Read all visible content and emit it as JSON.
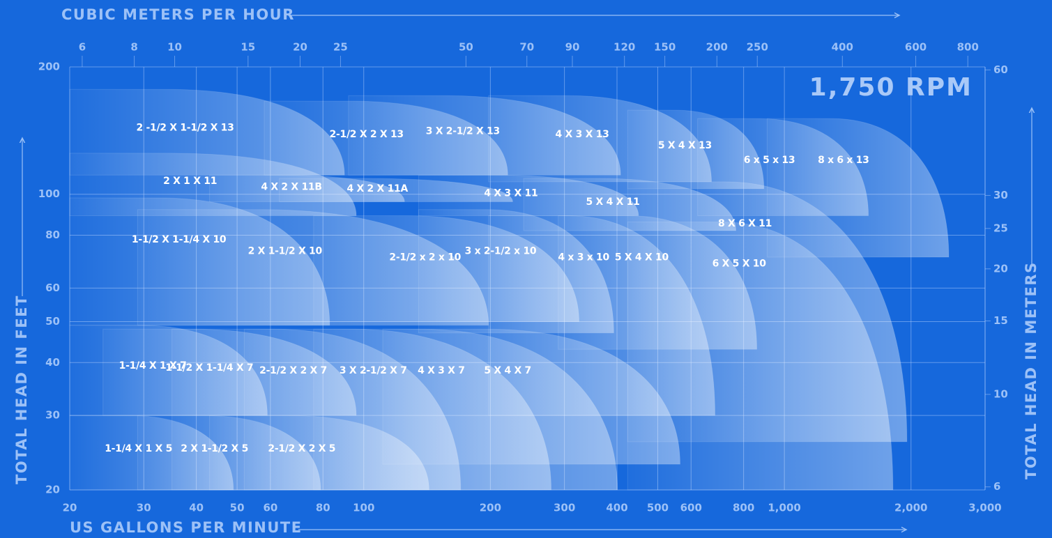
{
  "chart_data": {
    "type": "pump-curve",
    "rpm_label": "1,750 RPM",
    "xlabel": "US GALLONS PER MINUTE",
    "x2label": "CUBIC METERS PER HOUR",
    "ylabel": "TOTAL HEAD IN FEET",
    "y2label": "TOTAL HEAD IN METERS",
    "xscale": "log",
    "yscale": "log",
    "grid": true,
    "xlim": [
      20,
      3000
    ],
    "xticks": [
      20,
      30,
      40,
      50,
      60,
      80,
      100,
      200,
      300,
      400,
      500,
      600,
      800,
      {
        "value": 1000,
        "label": "1,000"
      },
      {
        "value": 2000,
        "label": "2,000"
      },
      {
        "value": 3000,
        "label": "3,000"
      }
    ],
    "x2lim": [
      5.6,
      880
    ],
    "x2ticks": [
      6,
      8,
      10,
      15,
      20,
      25,
      50,
      70,
      90,
      120,
      150,
      200,
      250,
      400,
      600,
      800
    ],
    "ylim": [
      20,
      200
    ],
    "yticks": [
      20,
      30,
      40,
      50,
      60,
      80,
      100,
      200
    ],
    "y2lim": [
      5.9,
      61
    ],
    "y2ticks": [
      6,
      10,
      15,
      20,
      25,
      30,
      60
    ],
    "series": [
      {
        "name": "8 x 6 x 13",
        "gpm": [
          910,
          2460
        ],
        "head": [
          71,
          151
        ]
      },
      {
        "name": "6 x 5 x 13",
        "gpm": [
          622,
          1584
        ],
        "head": [
          89,
          151
        ]
      },
      {
        "name": "5 X 4 X 13",
        "gpm": [
          424,
          894
        ],
        "head": [
          103,
          158
        ]
      },
      {
        "name": "4 X 3 X 13",
        "gpm": [
          198,
          671
        ],
        "head": [
          107,
          171
        ]
      },
      {
        "name": "3 X 2-1/2 X 13",
        "gpm": [
          92,
          408
        ],
        "head": [
          111,
          171
        ]
      },
      {
        "name": "2-1/2 X 2 X 13",
        "gpm": [
          58,
          220
        ],
        "head": [
          111,
          166
        ]
      },
      {
        "name": "2 -1/2 X 1-1/2 X 13",
        "gpm": [
          20,
          90
        ],
        "head": [
          111,
          177
        ]
      },
      {
        "name": "8 X 6 X 11",
        "gpm": [
          424,
          1956
        ],
        "head": [
          26,
          107
        ]
      },
      {
        "name": "5 X 4 X 11",
        "gpm": [
          240,
          767
        ],
        "head": [
          82,
          109
        ]
      },
      {
        "name": "4 X 3 X 11",
        "gpm": [
          135,
          450
        ],
        "head": [
          89,
          111
        ]
      },
      {
        "name": "4 X 2 X 11A",
        "gpm": [
          63,
          226
        ],
        "head": [
          96,
          109
        ]
      },
      {
        "name": "4 X 2 X 11B",
        "gpm": [
          43,
          125
        ],
        "head": [
          96,
          111
        ]
      },
      {
        "name": "2 X 1 X 11",
        "gpm": [
          20,
          96
        ],
        "head": [
          89,
          125
        ]
      },
      {
        "name": "6 X 5 X 10",
        "gpm": [
          424,
          1812
        ],
        "head": [
          20,
          86
        ]
      },
      {
        "name": "5 X 4 X 10",
        "gpm": [
          290,
          860
        ],
        "head": [
          43,
          89
        ]
      },
      {
        "name": "4 x 3 x 10",
        "gpm": [
          198,
          684
        ],
        "head": [
          30,
          89
        ]
      },
      {
        "name": "3 x 2-1/2 x 10",
        "gpm": [
          135,
          393
        ],
        "head": [
          47,
          92
        ]
      },
      {
        "name": "2-1/2 x 2 x 10",
        "gpm": [
          76,
          325
        ],
        "head": [
          50,
          89
        ]
      },
      {
        "name": "2 X 1-1/2 X 10",
        "gpm": [
          29,
          198
        ],
        "head": [
          49,
          92
        ]
      },
      {
        "name": "1-1/2 X 1-1/4 X 10",
        "gpm": [
          20,
          83
        ],
        "head": [
          49,
          98
        ]
      },
      {
        "name": "5 X 4 X 7",
        "gpm": [
          111,
          565
        ],
        "head": [
          23,
          48
        ]
      },
      {
        "name": "4 X 3 X 7",
        "gpm": [
          76,
          401
        ],
        "head": [
          20,
          48
        ]
      },
      {
        "name": "3 X 2-1/2 X 7",
        "gpm": [
          52,
          279
        ],
        "head": [
          20,
          48
        ]
      },
      {
        "name": "2-1/2 X 2 X 7",
        "gpm": [
          35,
          170
        ],
        "head": [
          20,
          48
        ]
      },
      {
        "name": "1-1/2 X 1-1/4 X 7",
        "gpm": [
          24,
          96
        ],
        "head": [
          30,
          48
        ]
      },
      {
        "name": "1-1/4 X 1 X 7",
        "gpm": [
          20,
          59
        ],
        "head": [
          30,
          49
        ]
      },
      {
        "name": "2-1/2 X 2 X 5",
        "gpm": [
          43,
          143
        ],
        "head": [
          20,
          30
        ]
      },
      {
        "name": "2 X 1-1/2 X 5",
        "gpm": [
          29,
          79
        ],
        "head": [
          20,
          30
        ]
      },
      {
        "name": "1-1/4 X 1 X 5",
        "gpm": [
          20,
          49
        ],
        "head": [
          20,
          30
        ]
      }
    ]
  }
}
